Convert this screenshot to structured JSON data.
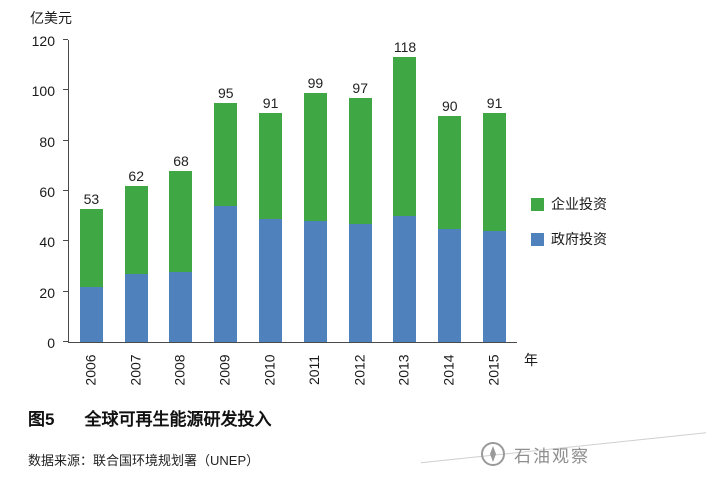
{
  "chart": {
    "y_axis_title": "亿美元",
    "x_axis_title": "年"
  },
  "chart_data": {
    "type": "bar",
    "stacked": true,
    "title": "",
    "ylabel": "亿美元",
    "xlabel": "年",
    "ylim": [
      0,
      120
    ],
    "yticks": [
      0,
      20,
      40,
      60,
      80,
      100,
      120
    ],
    "grid": false,
    "legend_position": "right",
    "categories": [
      "2006",
      "2007",
      "2008",
      "2009",
      "2010",
      "2011",
      "2012",
      "2013",
      "2014",
      "2015"
    ],
    "series": [
      {
        "name": "政府投资",
        "color": "#4F81BD",
        "values": [
          22,
          27,
          28,
          54,
          49,
          48,
          47,
          52,
          45,
          44
        ]
      },
      {
        "name": "企业投资",
        "color": "#3FA845",
        "values": [
          31,
          35,
          40,
          41,
          42,
          51,
          50,
          66,
          45,
          47
        ]
      }
    ],
    "totals": [
      53,
      62,
      68,
      95,
      91,
      99,
      97,
      118,
      90,
      91
    ]
  },
  "legend": [
    {
      "label": "企业投资",
      "color": "#3FA845"
    },
    {
      "label": "政府投资",
      "color": "#4F81BD"
    }
  ],
  "caption": {
    "figure_label": "图5",
    "title": "全球可再生能源研发投入"
  },
  "source": {
    "text": "数据来源：联合国环境规划署（UNEP）"
  },
  "watermark": {
    "text": "石油观察"
  }
}
